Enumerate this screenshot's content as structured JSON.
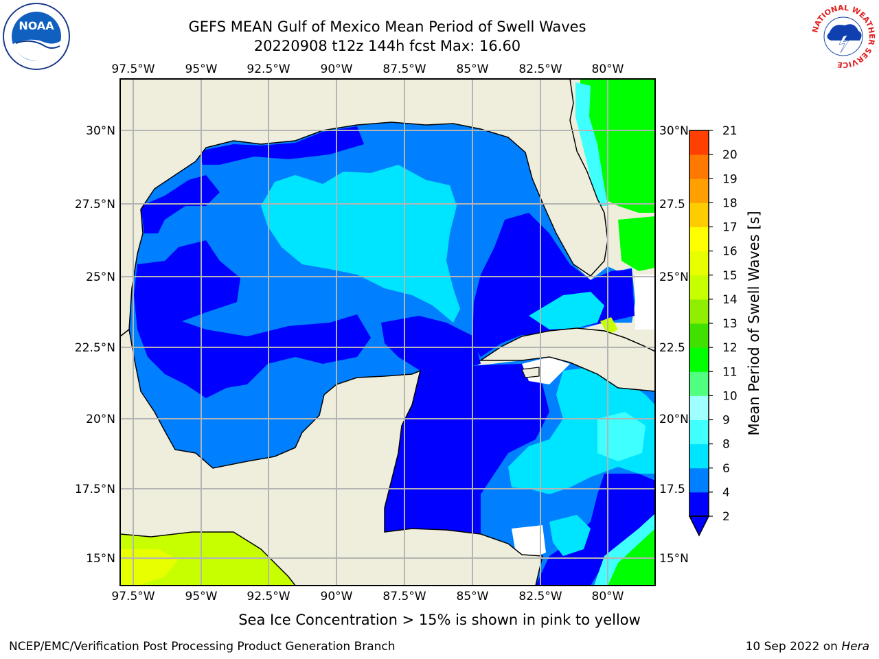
{
  "title_line1": "GEFS MEAN Gulf of Mexico Mean Period of Swell Waves",
  "title_line2": "20220908 t12z 144h fcst   Max: 16.60",
  "map": {
    "lon_labels": [
      "97.5°W",
      "95°W",
      "92.5°W",
      "90°W",
      "87.5°W",
      "85°W",
      "82.5°W",
      "80°W"
    ],
    "lat_labels": [
      "30°N",
      "27.5°N",
      "25°N",
      "22.5°N",
      "20°N",
      "17.5°N",
      "15°N"
    ],
    "lat_labels_right": [
      "30°N",
      "27.5",
      "25°N",
      "22.5",
      "20°N",
      "17.5",
      "15°N"
    ],
    "colors": {
      "land": "#efeedc",
      "coast": "#000000",
      "grid": "#b4b4b4"
    }
  },
  "colorbar": {
    "label": "Mean Period of Swell Waves [s]",
    "ticks": [
      "2",
      "4",
      "6",
      "8",
      "9",
      "10",
      "11",
      "12",
      "13",
      "14",
      "15",
      "16",
      "17",
      "18",
      "19",
      "20",
      "21"
    ],
    "colors": [
      "#0000ff",
      "#0080ff",
      "#00e5ff",
      "#40ffff",
      "#a0ffff",
      "#50ff80",
      "#00ff00",
      "#40e000",
      "#90ee00",
      "#c8ff00",
      "#e8ff00",
      "#ffff00",
      "#ffcc00",
      "#ffa000",
      "#ff7800",
      "#ff4000",
      "#ff0000"
    ]
  },
  "logos": {
    "noaa_text": "NOAA",
    "nws_ring_text": "NATIONAL WEATHER SERVICE"
  },
  "note": "Sea Ice Concentration > 15% is shown in pink to yellow",
  "credit": "NCEP/EMC/Verification Post Processing Product Generation Branch",
  "date": "10 Sep 2022 on",
  "host": "Hera"
}
